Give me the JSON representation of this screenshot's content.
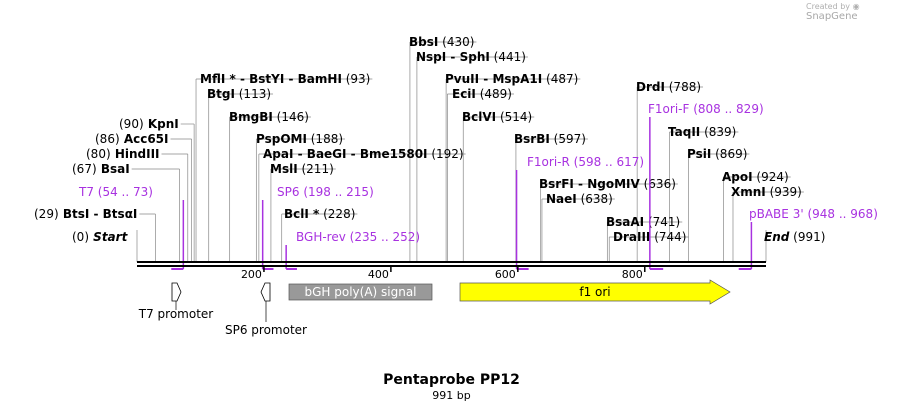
{
  "credit": {
    "prefix": "Created by",
    "brand": "SnapGene",
    "icon": "snapgene-logo-icon"
  },
  "title": "Pentaprobe PP12",
  "size": "991 bp",
  "ticks": [
    "200",
    "400",
    "600",
    "800"
  ],
  "tick_values": [
    200,
    400,
    600,
    800
  ],
  "sites": [
    {
      "parts": [
        "(0)",
        "Start"
      ],
      "style": "endpoint",
      "bp": 0
    },
    {
      "parts": [
        "End",
        "(991)"
      ],
      "style": "endpoint-right",
      "bp": 991
    },
    {
      "parts": [
        "(29)",
        "BtsI",
        "-",
        "BtsαI"
      ],
      "bp": 29
    },
    {
      "parts": [
        "(67)",
        "BsaI"
      ],
      "bp": 67
    },
    {
      "parts": [
        "(80)",
        "HindIII"
      ],
      "bp": 80
    },
    {
      "parts": [
        "(86)",
        "Acc65I"
      ],
      "bp": 86
    },
    {
      "parts": [
        "(90)",
        "KpnI"
      ],
      "bp": 90
    },
    {
      "parts": [
        "MflI *",
        "-",
        "BstYI",
        "-",
        "BamHI",
        "(93)"
      ],
      "bp": 93
    },
    {
      "parts": [
        "BtgI",
        "(113)"
      ],
      "bp": 113
    },
    {
      "parts": [
        "BmgBI",
        "(146)"
      ],
      "bp": 146
    },
    {
      "parts": [
        "PspOMI",
        "(188)"
      ],
      "bp": 188
    },
    {
      "parts": [
        "ApaI",
        "-",
        "BaeGI",
        "-",
        "Bme1580I",
        "(192)"
      ],
      "bp": 192
    },
    {
      "parts": [
        "MslI",
        "(211)"
      ],
      "bp": 211
    },
    {
      "parts": [
        "BclI *",
        "(228)"
      ],
      "bp": 228
    },
    {
      "parts": [
        "BbsI",
        "(430)"
      ],
      "bp": 430
    },
    {
      "parts": [
        "NspI",
        "-",
        "SphI",
        "(441)"
      ],
      "bp": 441
    },
    {
      "parts": [
        "PvuII",
        "-",
        "MspA1I",
        "(487)"
      ],
      "bp": 487
    },
    {
      "parts": [
        "EciI",
        "(489)"
      ],
      "bp": 489
    },
    {
      "parts": [
        "BclVI",
        "(514)"
      ],
      "bp": 514
    },
    {
      "parts": [
        "BsrBI",
        "(597)"
      ],
      "bp": 597
    },
    {
      "parts": [
        "BsrFI",
        "-",
        "NgoMIV",
        "(636)"
      ],
      "bp": 636
    },
    {
      "parts": [
        "NaeI",
        "(638)"
      ],
      "bp": 638
    },
    {
      "parts": [
        "BsaAI",
        "(741)"
      ],
      "bp": 741
    },
    {
      "parts": [
        "DraIII",
        "(744)"
      ],
      "bp": 744
    },
    {
      "parts": [
        "DrdI",
        "(788)"
      ],
      "bp": 788
    },
    {
      "parts": [
        "TaqII",
        "(839)"
      ],
      "bp": 839
    },
    {
      "parts": [
        "PsiI",
        "(869)"
      ],
      "bp": 869
    },
    {
      "parts": [
        "ApoI",
        "(924)"
      ],
      "bp": 924
    },
    {
      "parts": [
        "XmnI",
        "(939)"
      ],
      "bp": 939
    }
  ],
  "primers": [
    {
      "name": "T7",
      "range": "(54 .. 73)",
      "start": 54,
      "end": 73
    },
    {
      "name": "SP6",
      "range": "(198 .. 215)",
      "start": 198,
      "end": 215
    },
    {
      "name": "BGH-rev",
      "range": "(235 .. 252)",
      "start": 235,
      "end": 252
    },
    {
      "name": "F1ori-R",
      "range": "(598 .. 617)",
      "start": 598,
      "end": 617
    },
    {
      "name": "F1ori-F",
      "range": "(808 .. 829)",
      "start": 808,
      "end": 829
    },
    {
      "name": "pBABE 3'",
      "range": "(948 .. 968)",
      "start": 948,
      "end": 968
    }
  ],
  "features": [
    {
      "name": "T7 promoter",
      "type": "promoter",
      "color": "#ffffff",
      "start": 54,
      "end": 73
    },
    {
      "name": "SP6 promoter",
      "type": "promoter",
      "color": "#ffffff",
      "start": 198,
      "end": 215
    },
    {
      "name": "bGH poly(A) signal",
      "type": "polyA",
      "color": "#999999",
      "start": 240,
      "end": 464
    },
    {
      "name": "f1 ori",
      "type": "rep_origin",
      "color": "#ffff00",
      "start": 518,
      "end": 944
    }
  ],
  "colors": {
    "primer": "#a832e0",
    "backbone": "#000000",
    "leader": "#888888"
  }
}
